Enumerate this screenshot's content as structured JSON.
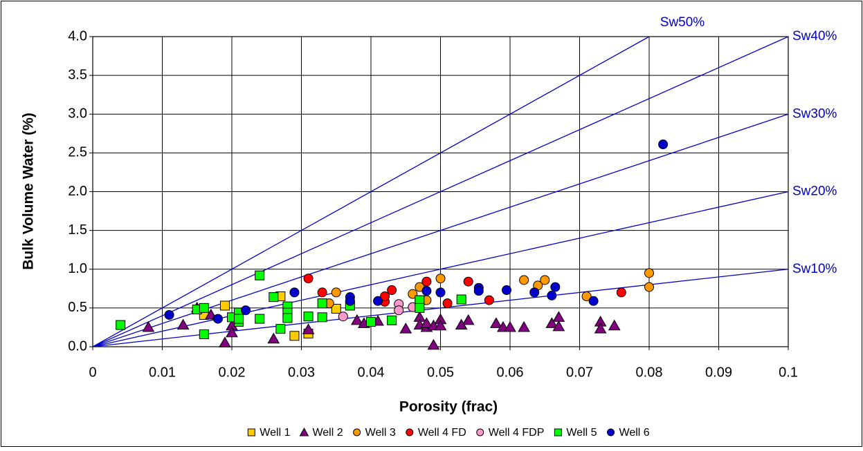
{
  "chart_data": {
    "type": "scatter",
    "x_label": "Porosity (frac)",
    "y_label": "Bulk Volume Water (%)",
    "xlim": [
      0,
      0.1
    ],
    "ylim": [
      0,
      4
    ],
    "xticks": [
      0,
      0.01,
      0.02,
      0.03,
      0.04,
      0.05,
      0.06,
      0.07,
      0.08,
      0.09,
      0.1
    ],
    "yticks": [
      {
        "value": 0,
        "label": "0.0"
      },
      0.5,
      {
        "value": 1,
        "label": "1.0"
      },
      1.5,
      {
        "value": 2,
        "label": "2.0"
      },
      2.5,
      {
        "value": 3,
        "label": "3.0"
      },
      3.5,
      {
        "value": 4,
        "label": "4.0"
      }
    ],
    "grid": true,
    "legend": "bottom",
    "reference_lines": [
      {
        "label": "Sw10%",
        "sw": 10
      },
      {
        "label": "Sw20%",
        "sw": 20
      },
      {
        "label": "Sw30%",
        "sw": 30
      },
      {
        "label": "Sw40%",
        "sw": 40
      },
      {
        "label": "Sw50%",
        "sw": 50
      }
    ],
    "reference_color": "#0000cc",
    "series": [
      {
        "name": "Well 1",
        "color": "#ffcc00",
        "marker": "square",
        "x": [
          0.016,
          0.019,
          0.027,
          0.029,
          0.031,
          0.035,
          0.047
        ],
        "values": [
          0.41,
          0.53,
          0.65,
          0.14,
          0.17,
          0.49,
          0.6
        ]
      },
      {
        "name": "Well 2",
        "color": "#800080",
        "marker": "triangle",
        "x": [
          0.008,
          0.013,
          0.015,
          0.017,
          0.019,
          0.02,
          0.02,
          0.026,
          0.031,
          0.038,
          0.039,
          0.041,
          0.045,
          0.047,
          0.047,
          0.048,
          0.048,
          0.049,
          0.049,
          0.05,
          0.05,
          0.053,
          0.054,
          0.058,
          0.059,
          0.06,
          0.062,
          0.066,
          0.067,
          0.067,
          0.073,
          0.073,
          0.075
        ],
        "values": [
          0.25,
          0.28,
          0.5,
          0.41,
          0.05,
          0.27,
          0.18,
          0.1,
          0.22,
          0.34,
          0.3,
          0.33,
          0.23,
          0.38,
          0.28,
          0.25,
          0.3,
          0.02,
          0.27,
          0.35,
          0.27,
          0.28,
          0.34,
          0.3,
          0.25,
          0.25,
          0.25,
          0.3,
          0.38,
          0.26,
          0.32,
          0.23,
          0.27
        ]
      },
      {
        "name": "Well 3",
        "color": "#ff9900",
        "marker": "circle",
        "x": [
          0.034,
          0.035,
          0.046,
          0.047,
          0.048,
          0.05,
          0.062,
          0.064,
          0.065,
          0.071,
          0.08,
          0.08
        ],
        "values": [
          0.56,
          0.7,
          0.68,
          0.77,
          0.6,
          0.88,
          0.86,
          0.79,
          0.86,
          0.65,
          0.95,
          0.77
        ]
      },
      {
        "name": "Well 4 FD",
        "color": "#ff0000",
        "marker": "circle",
        "x": [
          0.031,
          0.033,
          0.042,
          0.042,
          0.043,
          0.048,
          0.051,
          0.054,
          0.057,
          0.076
        ],
        "values": [
          0.88,
          0.7,
          0.58,
          0.65,
          0.73,
          0.84,
          0.56,
          0.84,
          0.6,
          0.7
        ]
      },
      {
        "name": "Well 4 FDP",
        "color": "#ff99cc",
        "marker": "circle",
        "x": [
          0.036,
          0.044,
          0.044,
          0.046
        ],
        "values": [
          0.39,
          0.55,
          0.47,
          0.51
        ]
      },
      {
        "name": "Well 5",
        "color": "#00ff00",
        "marker": "square",
        "x": [
          0.004,
          0.015,
          0.016,
          0.016,
          0.02,
          0.021,
          0.021,
          0.021,
          0.024,
          0.024,
          0.026,
          0.027,
          0.028,
          0.028,
          0.028,
          0.031,
          0.033,
          0.033,
          0.037,
          0.04,
          0.043,
          0.047,
          0.047,
          0.053
        ],
        "values": [
          0.28,
          0.48,
          0.5,
          0.16,
          0.38,
          0.44,
          0.32,
          0.36,
          0.92,
          0.36,
          0.64,
          0.23,
          0.52,
          0.44,
          0.37,
          0.39,
          0.56,
          0.38,
          0.53,
          0.32,
          0.34,
          0.6,
          0.5,
          0.61
        ]
      },
      {
        "name": "Well 6",
        "color": "#0000cc",
        "marker": "circle",
        "x": [
          0.011,
          0.018,
          0.022,
          0.029,
          0.037,
          0.037,
          0.041,
          0.048,
          0.05,
          0.0555,
          0.0555,
          0.0595,
          0.0635,
          0.066,
          0.0665,
          0.072,
          0.082
        ],
        "values": [
          0.41,
          0.36,
          0.47,
          0.7,
          0.64,
          0.59,
          0.59,
          0.72,
          0.7,
          0.76,
          0.72,
          0.73,
          0.7,
          0.66,
          0.77,
          0.59,
          2.61
        ]
      }
    ]
  }
}
